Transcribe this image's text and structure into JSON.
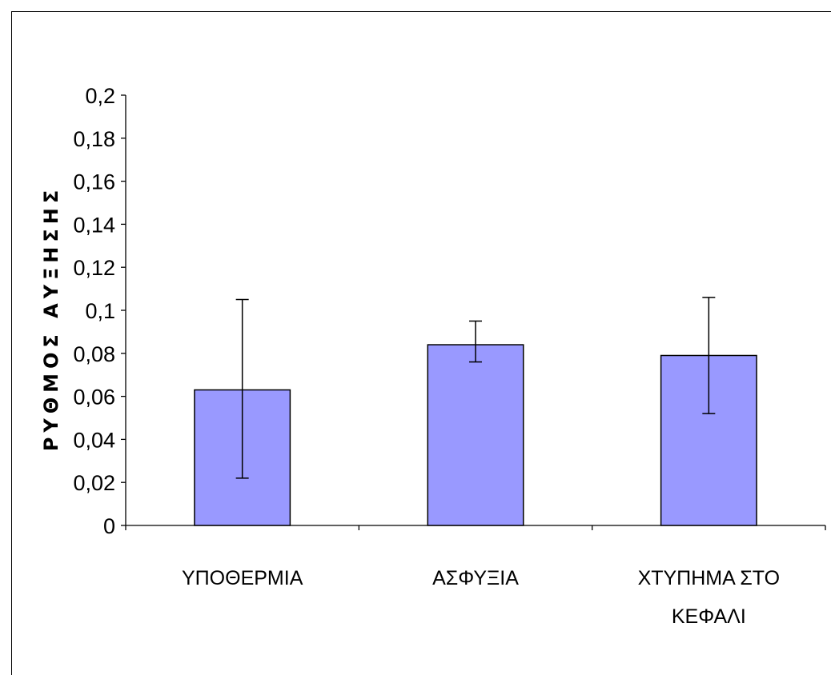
{
  "chart_data": {
    "type": "bar",
    "categories": [
      [
        "ΥΠΟΘΕΡΜΙΑ"
      ],
      [
        "ΑΣΦΥΞΙΑ"
      ],
      [
        "ΧΤΥΠΗΜΑ ΣΤΟ",
        "ΚΕΦΑΛΙ"
      ]
    ],
    "values": [
      0.063,
      0.084,
      0.079
    ],
    "error_bars": [
      {
        "low": 0.022,
        "high": 0.105
      },
      {
        "low": 0.076,
        "high": 0.095
      },
      {
        "low": 0.052,
        "high": 0.106
      }
    ],
    "title": "",
    "xlabel": "",
    "ylabel": "ΡΥΘΜΟΣ ΑΥΞΗΣΗΣ",
    "ylim": [
      0,
      0.2
    ],
    "yticks": [
      0,
      0.02,
      0.04,
      0.06,
      0.08,
      0.1,
      0.12,
      0.14,
      0.16,
      0.18,
      0.2
    ],
    "ytick_labels": [
      "0",
      "0,02",
      "0,04",
      "0,06",
      "0,08",
      "0,1",
      "0,12",
      "0,14",
      "0,16",
      "0,18",
      "0,2"
    ],
    "grid": false,
    "legend": "none",
    "bar_color": "#9999ff",
    "bar_edge_color": "#000000"
  }
}
